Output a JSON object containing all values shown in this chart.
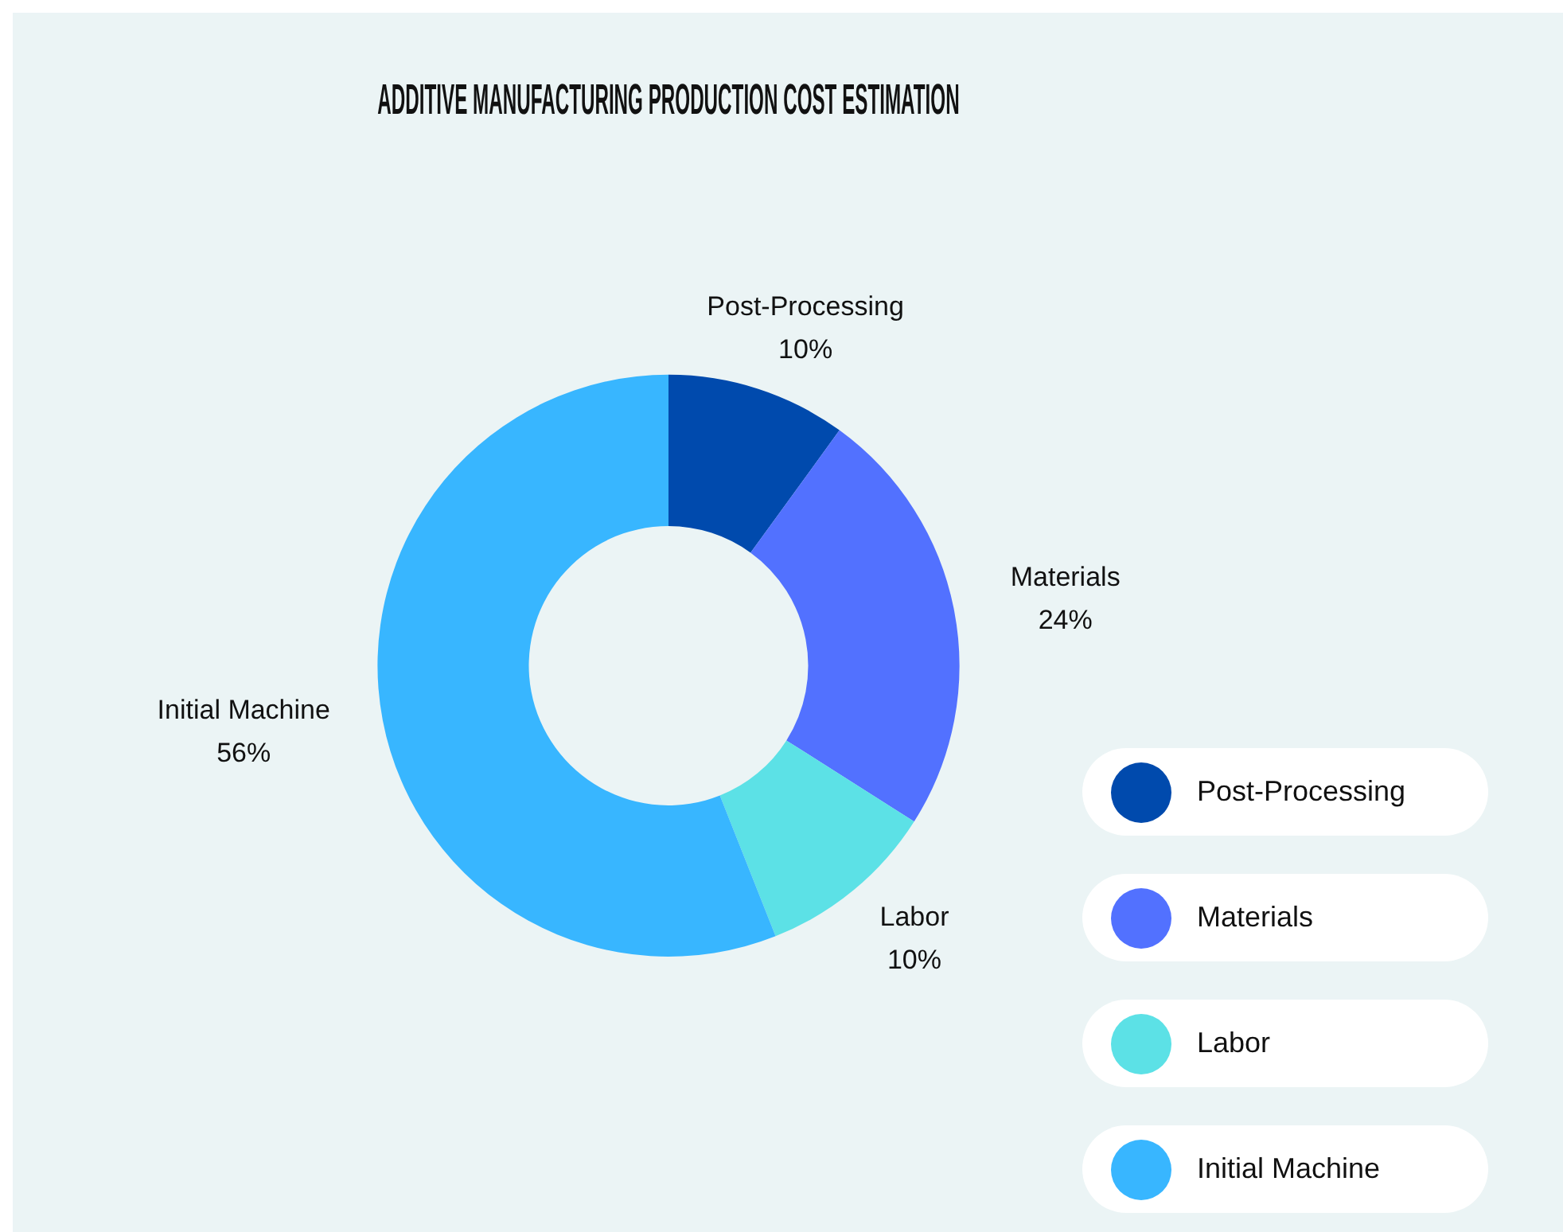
{
  "chart_data": {
    "type": "donut",
    "title": "ADDITIVE MANUFACTURING PRODUCTION COST ESTIMATION",
    "categories": [
      "Post-Processing",
      "Materials",
      "Labor",
      "Initial Machine"
    ],
    "values": [
      10,
      24,
      10,
      56
    ],
    "value_labels": [
      "10%",
      "24%",
      "10%",
      "56%"
    ],
    "colors": [
      "#004aad",
      "#5271ff",
      "#5ce1e6",
      "#38b6ff"
    ],
    "legend": "bottom right"
  }
}
